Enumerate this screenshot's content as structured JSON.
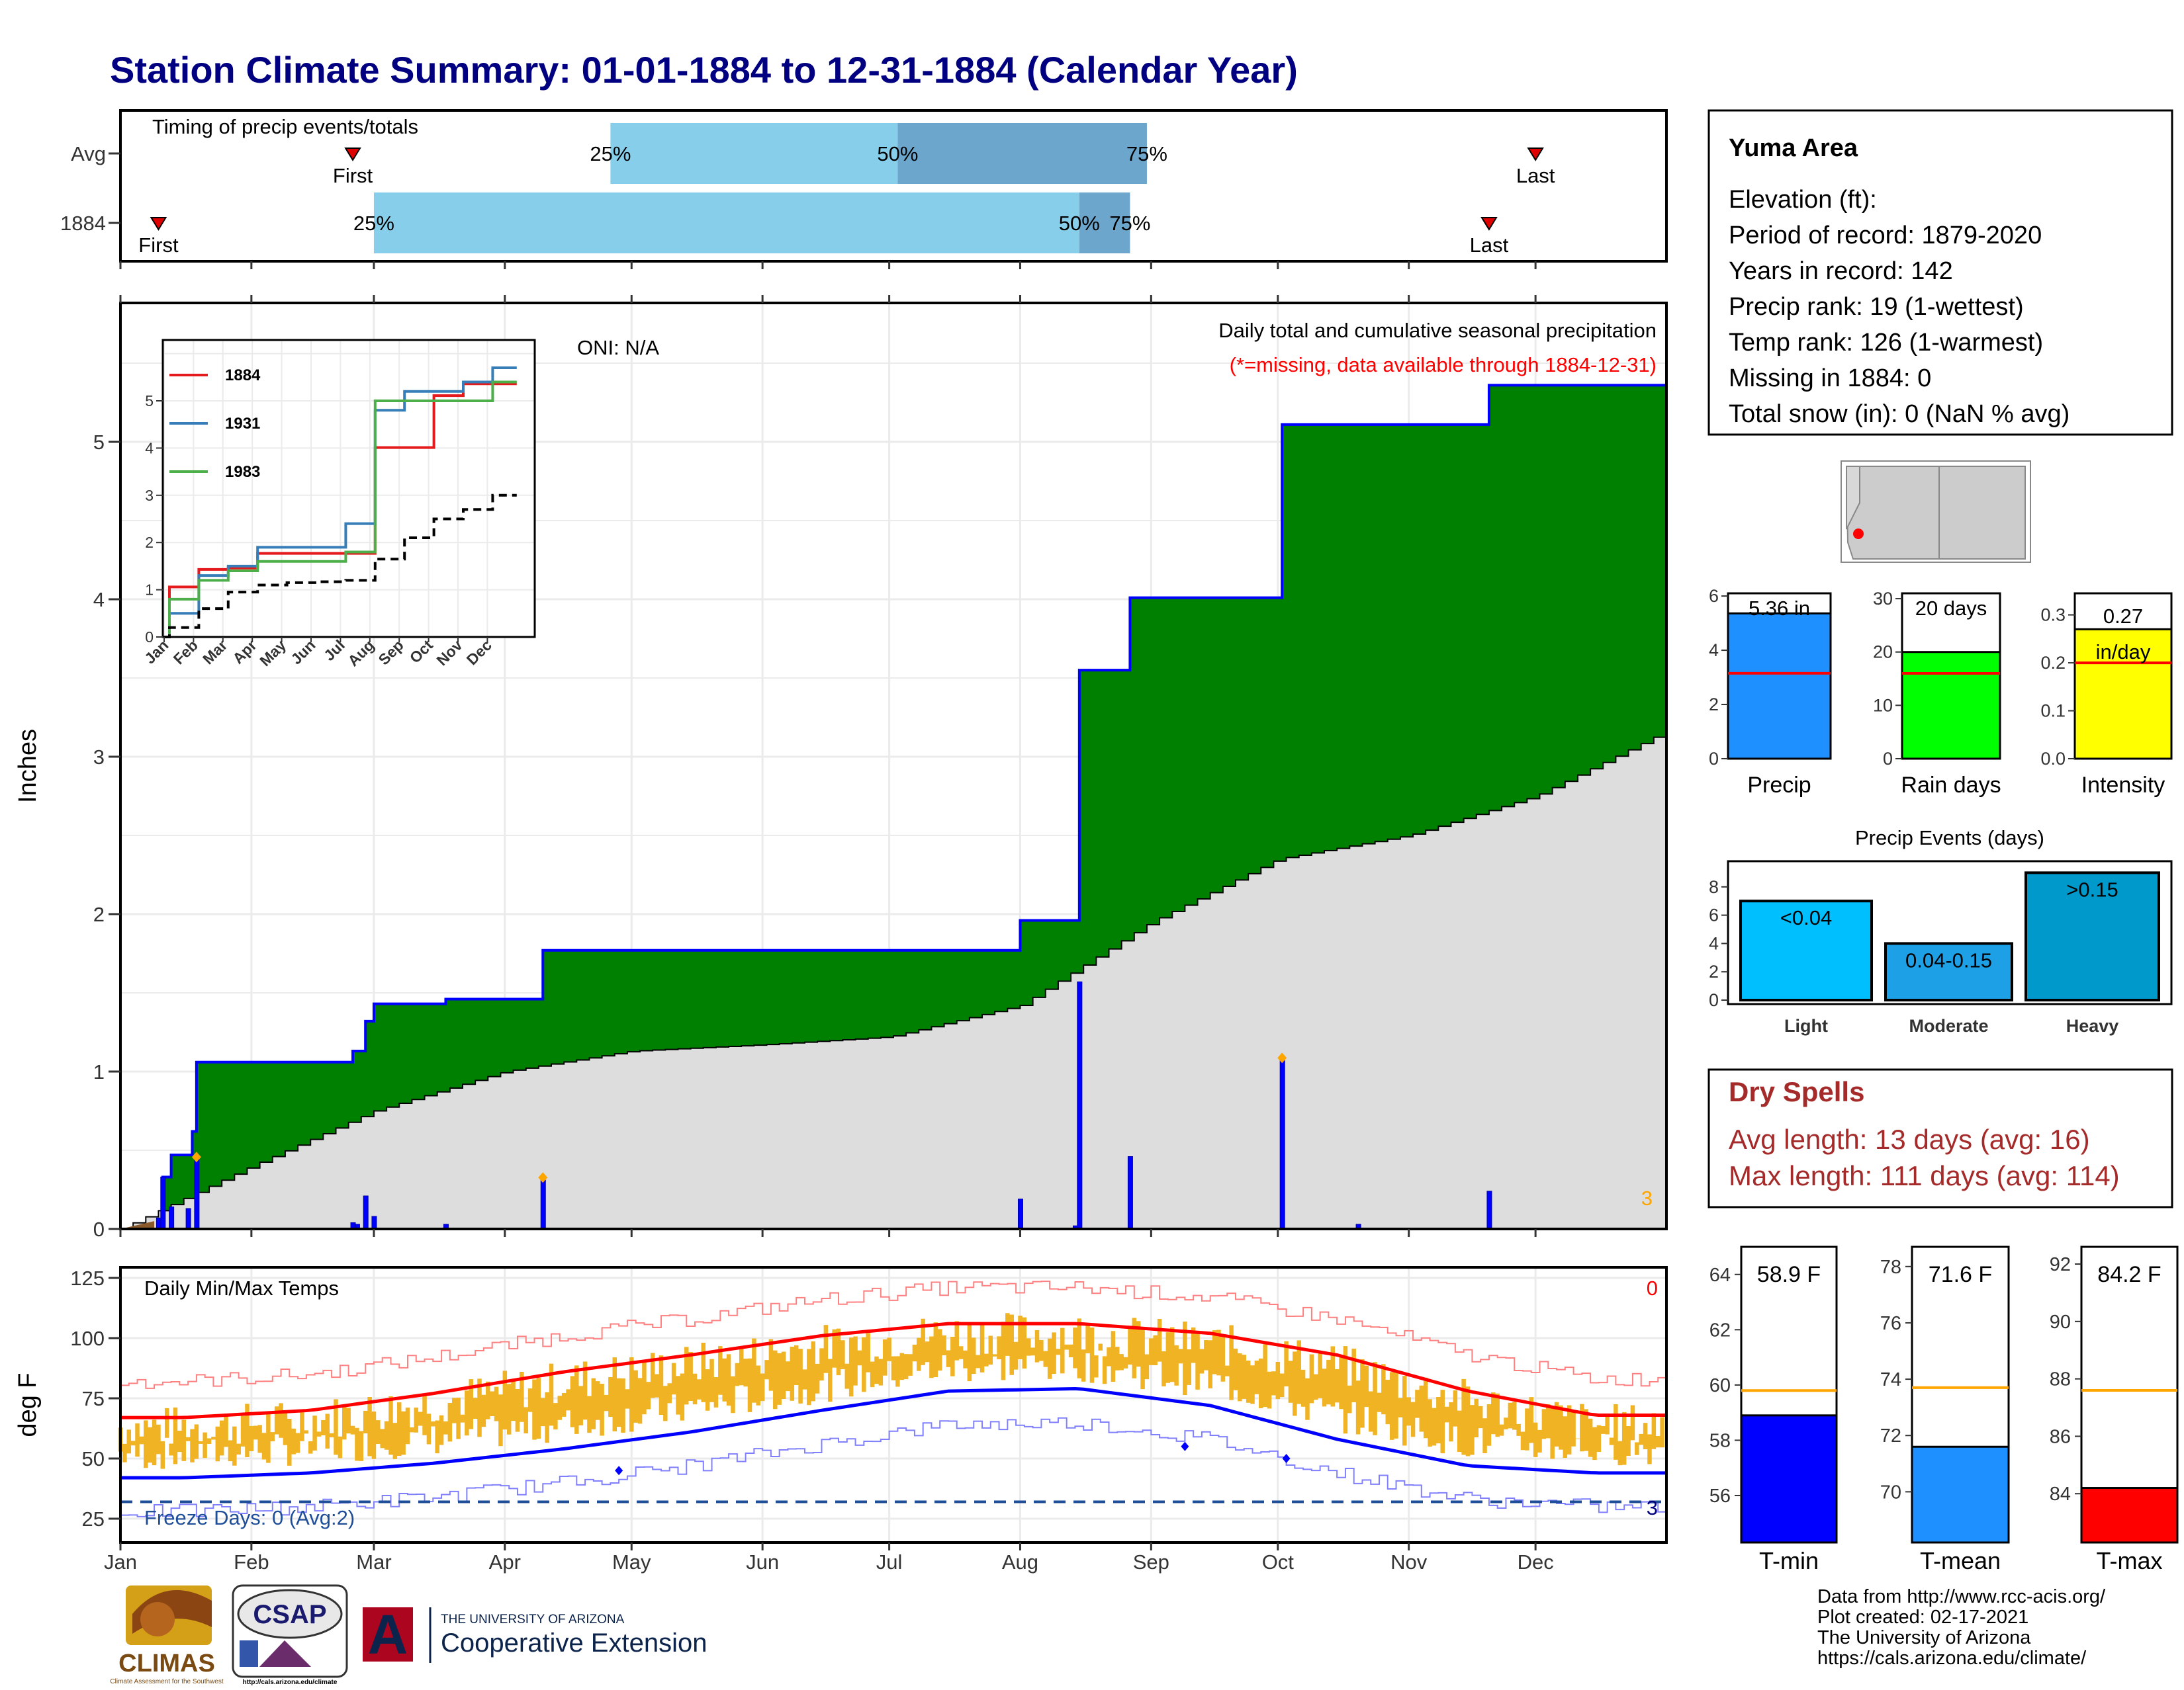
{
  "title": "Station Climate Summary: 01-01-1884 to 12-31-1884 (Calendar Year)",
  "colors": {
    "title": "#000080",
    "frame": "#000000",
    "grid": "#ebebeb",
    "timing_light": "#87ceeb",
    "timing_dark": "#6ca6cd",
    "cum_green": "#008000",
    "cum_outline": "#0000ff",
    "normal_gray": "#dddddd",
    "daily_bar": "#0000ff",
    "precip_bar": "#1e90ff",
    "raindays_bar": "#00ff00",
    "intensity_bar": "#ffff00",
    "light_bar": "#00bfff",
    "moderate_bar": "#1ea0e6",
    "heavy_bar": "#0099cc",
    "tmin_bar": "#0000ff",
    "tmean_bar": "#1e90ff",
    "tmax_bar": "#ff0000",
    "dry_text": "#a52a2a",
    "missing_text": "#ff0000",
    "orange": "#ffa500",
    "temp_range": "#f0b323"
  },
  "timing": {
    "label": "Timing of precip events/totals",
    "rows": [
      {
        "name": "Avg",
        "first": "Feb 25",
        "p25": "Apr 26",
        "p50": "Jul 3",
        "p75": "Aug 31",
        "last": "Dec 1",
        "first_label": "First",
        "last_label": "Last",
        "p25_label": "25%",
        "p50_label": "50%",
        "p75_label": "75%"
      },
      {
        "name": "1884",
        "first": "Jan 10",
        "p25": "Mar 1",
        "p50": "Aug 15",
        "p75": "Aug 27",
        "last": "Nov 20",
        "first_label": "First",
        "last_label": "Last",
        "p25_label": "25%",
        "p50_label": "50%",
        "p75_label": "75%"
      }
    ]
  },
  "main_chart": {
    "ylabel": "Inches",
    "annotation_title": "Daily total and cumulative seasonal precipitation",
    "annotation_missing": "(*=missing, data available through 1884-12-31)",
    "oni": "ONI: N/A",
    "count_label": "3",
    "months": [
      "Jan",
      "Feb",
      "Mar",
      "Apr",
      "May",
      "Jun",
      "Jul",
      "Aug",
      "Sep",
      "Oct",
      "Nov",
      "Dec"
    ],
    "y_ticks": [
      "0",
      "1",
      "2",
      "3",
      "4",
      "5"
    ],
    "ylim": [
      0,
      5.85
    ]
  },
  "chart_data": [
    {
      "type": "area",
      "title": "Daily total and cumulative seasonal precipitation",
      "ylabel": "Inches",
      "ylim": [
        0,
        5.85
      ],
      "cumulative_1884": [
        {
          "date": "1884-01-01",
          "value": 0.0
        },
        {
          "date": "1884-01-11",
          "value": 0.33
        },
        {
          "date": "1884-01-13",
          "value": 0.47
        },
        {
          "date": "1884-01-18",
          "value": 0.62
        },
        {
          "date": "1884-01-19",
          "value": 1.06
        },
        {
          "date": "1884-02-25",
          "value": 1.13
        },
        {
          "date": "1884-02-28",
          "value": 1.32
        },
        {
          "date": "1884-03-01",
          "value": 1.43
        },
        {
          "date": "1884-03-18",
          "value": 1.46
        },
        {
          "date": "1884-04-10",
          "value": 1.77
        },
        {
          "date": "1884-08-01",
          "value": 1.96
        },
        {
          "date": "1884-08-15",
          "value": 3.55
        },
        {
          "date": "1884-08-27",
          "value": 4.01
        },
        {
          "date": "1884-10-02",
          "value": 5.11
        },
        {
          "date": "1884-11-20",
          "value": 5.36
        },
        {
          "date": "1884-12-31",
          "value": 5.36
        }
      ],
      "normal_cumulative": [
        {
          "date": "1884-01-01",
          "value": 0.0
        },
        {
          "date": "1884-02-01",
          "value": 0.4
        },
        {
          "date": "1884-03-01",
          "value": 0.75
        },
        {
          "date": "1884-04-01",
          "value": 1.0
        },
        {
          "date": "1884-05-01",
          "value": 1.13
        },
        {
          "date": "1884-06-01",
          "value": 1.17
        },
        {
          "date": "1884-07-01",
          "value": 1.22
        },
        {
          "date": "1884-08-01",
          "value": 1.42
        },
        {
          "date": "1884-09-01",
          "value": 1.95
        },
        {
          "date": "1884-10-01",
          "value": 2.35
        },
        {
          "date": "1884-11-01",
          "value": 2.5
        },
        {
          "date": "1884-12-01",
          "value": 2.75
        },
        {
          "date": "1884-12-31",
          "value": 3.15
        }
      ],
      "daily": [
        {
          "date": "1884-01-10",
          "value": 0.07
        },
        {
          "date": "1884-01-11",
          "value": 0.33
        },
        {
          "date": "1884-01-13",
          "value": 0.14
        },
        {
          "date": "1884-01-17",
          "value": 0.13
        },
        {
          "date": "1884-01-19",
          "value": 0.44
        },
        {
          "date": "1884-02-25",
          "value": 0.04
        },
        {
          "date": "1884-02-26",
          "value": 0.03
        },
        {
          "date": "1884-02-28",
          "value": 0.21
        },
        {
          "date": "1884-03-01",
          "value": 0.08
        },
        {
          "date": "1884-03-18",
          "value": 0.03
        },
        {
          "date": "1884-04-10",
          "value": 0.31
        },
        {
          "date": "1884-08-01",
          "value": 0.19
        },
        {
          "date": "1884-08-14",
          "value": 0.02
        },
        {
          "date": "1884-08-15",
          "value": 1.57
        },
        {
          "date": "1884-08-27",
          "value": 0.46
        },
        {
          "date": "1884-10-02",
          "value": 1.07
        },
        {
          "date": "1884-10-20",
          "value": 0.03
        },
        {
          "date": "1884-11-20",
          "value": 0.24
        }
      ]
    },
    {
      "type": "line",
      "title": "",
      "x": [
        "Jan",
        "Feb",
        "Mar",
        "Apr",
        "May",
        "Jun",
        "Jul",
        "Aug",
        "Sep",
        "Oct",
        "Nov",
        "Dec"
      ],
      "y_ticks": [
        "0",
        "1",
        "2",
        "3",
        "4",
        "5"
      ],
      "series": [
        {
          "name": "1884",
          "color": "#e41a1c",
          "values": [
            1.06,
            1.43,
            1.46,
            1.77,
            1.77,
            1.77,
            1.77,
            4.01,
            4.01,
            5.11,
            5.36,
            5.36
          ]
        },
        {
          "name": "1931",
          "color": "#377eb8",
          "values": [
            0.5,
            1.3,
            1.5,
            1.9,
            1.9,
            1.9,
            2.4,
            4.8,
            5.2,
            5.2,
            5.4,
            5.7
          ]
        },
        {
          "name": "1983",
          "color": "#4daf4a",
          "values": [
            0.8,
            1.2,
            1.4,
            1.6,
            1.6,
            1.6,
            1.8,
            5.0,
            5.0,
            5.0,
            5.0,
            5.4
          ]
        },
        {
          "name": "",
          "color": "#000000",
          "dashed": true,
          "values": [
            0.2,
            0.6,
            0.95,
            1.1,
            1.15,
            1.17,
            1.2,
            1.65,
            2.1,
            2.5,
            2.7,
            3.0
          ]
        }
      ]
    },
    {
      "type": "bar",
      "title": "Precip Events (days)",
      "categories": [
        "Light",
        "Moderate",
        "Heavy"
      ],
      "values": [
        7,
        4,
        9
      ],
      "value_labels": [
        "<0.04",
        "0.04-0.15",
        ">0.15"
      ],
      "ylim": [
        0,
        9
      ],
      "y_ticks": [
        "0",
        "2",
        "4",
        "6",
        "8"
      ]
    },
    {
      "type": "bar",
      "title": "",
      "categories": [
        "Precip",
        "Rain days",
        "Intensity"
      ],
      "values": [
        5.36,
        20,
        0.27
      ],
      "averages": [
        3.15,
        16,
        0.2
      ],
      "value_labels": [
        "5.36 in",
        "20 days",
        "0.27 in/day"
      ]
    },
    {
      "type": "line",
      "title": "Daily Min/Max Temps",
      "ylabel": "deg F",
      "ylim": [
        20,
        128
      ],
      "y_ticks": [
        "25",
        "50",
        "75",
        "100",
        "125"
      ],
      "series": [
        {
          "name": "",
          "color": "#ff0000",
          "values": [
            67,
            70,
            77,
            86,
            93,
            101,
            106,
            106,
            102,
            93,
            78,
            68
          ]
        },
        {
          "name": "",
          "color": "#0000ff",
          "values": [
            42,
            44,
            48,
            54,
            61,
            70,
            78,
            79,
            72,
            58,
            47,
            44
          ]
        }
      ],
      "freeze_line": 32,
      "freeze_label": "Freeze Days: 0 (Avg:2)",
      "count_top": "0",
      "count_bottom": "3"
    },
    {
      "type": "bar",
      "title": "",
      "categories": [
        "T-min",
        "T-mean",
        "T-max"
      ],
      "values": [
        58.9,
        71.6,
        84.2
      ],
      "averages": [
        59.8,
        73.7,
        87.6
      ],
      "value_labels": [
        "58.9 F",
        "71.6 F",
        "84.2 F"
      ]
    }
  ],
  "stats": {
    "station": "Yuma Area",
    "lines": [
      "Elevation (ft):",
      "Period of record: 1879-2020",
      "Years in record: 142",
      "Precip rank: 19 (1-wettest)",
      "Temp rank: 126 (1-warmest)",
      "Missing in 1884: 0",
      "Total snow (in): 0 (NaN % avg)"
    ]
  },
  "precip_panels": [
    {
      "label": "Precip",
      "value_text": "5.36 in",
      "value_text2": "",
      "value": 5.36,
      "avg": 3.15,
      "ymax": 6.1,
      "ticks": [
        "0",
        "2",
        "4",
        "6"
      ],
      "tick_vals": [
        0,
        2,
        4,
        6
      ]
    },
    {
      "label": "Rain days",
      "value_text": "20 days",
      "value_text2": "",
      "value": 20,
      "avg": 16,
      "ymax": 31,
      "ticks": [
        "0",
        "10",
        "20",
        "30"
      ],
      "tick_vals": [
        0,
        10,
        20,
        30
      ]
    },
    {
      "label": "Intensity",
      "value_text": "0.27",
      "value_text2": "in/day",
      "value": 0.27,
      "avg": 0.2,
      "ymax": 0.345,
      "ticks": [
        "0.0",
        "0.1",
        "0.2",
        "0.3"
      ],
      "tick_vals": [
        0,
        0.1,
        0.2,
        0.3
      ]
    }
  ],
  "events": {
    "title": "Precip Events (days)",
    "bars": [
      {
        "label": "Light",
        "text": "<0.04",
        "value": 7
      },
      {
        "label": "Moderate",
        "text": "0.04-0.15",
        "value": 4
      },
      {
        "label": "Heavy",
        "text": ">0.15",
        "value": 9
      }
    ],
    "ticks": [
      "0",
      "2",
      "4",
      "6",
      "8"
    ]
  },
  "dry_spells": {
    "title": "Dry Spells",
    "avg": "Avg length: 13 days (avg: 16)",
    "max": "Max length: 111 days (avg: 114)"
  },
  "temp_panels": [
    {
      "label": "T-min",
      "value_text": "58.9 F",
      "value": 58.9,
      "avg": 59.8,
      "ymin": 54.3,
      "ymax": 65.0,
      "ticks": [
        "56",
        "58",
        "60",
        "62",
        "64"
      ],
      "tick_vals": [
        56,
        58,
        60,
        62,
        64
      ]
    },
    {
      "label": "T-mean",
      "value_text": "71.6 F",
      "value": 71.6,
      "avg": 73.7,
      "ymin": 68.2,
      "ymax": 78.7,
      "ticks": [
        "70",
        "72",
        "74",
        "76",
        "78"
      ],
      "tick_vals": [
        70,
        72,
        74,
        76,
        78
      ]
    },
    {
      "label": "T-max",
      "value_text": "84.2 F",
      "value": 84.2,
      "avg": 87.6,
      "ymin": 82.3,
      "ymax": 92.6,
      "ticks": [
        "84",
        "86",
        "88",
        "90",
        "92"
      ],
      "tick_vals": [
        84,
        86,
        88,
        90,
        92
      ]
    }
  ],
  "footer": {
    "lines": [
      "Data from http://www.rcc-acis.org/",
      "Plot created: 02-17-2021",
      "The University of Arizona",
      "https://cals.arizona.edu/climate/"
    ]
  },
  "logos": {
    "climas": "CLIMAS",
    "climas_sub": "Climate Assessment for the Southwest",
    "csap": "CSAP",
    "csap_url": "http://cals.arizona.edu/climate",
    "ua_letter": "A",
    "ua_small": "THE UNIVERSITY OF ARIZONA",
    "ua_big": "Cooperative Extension"
  }
}
